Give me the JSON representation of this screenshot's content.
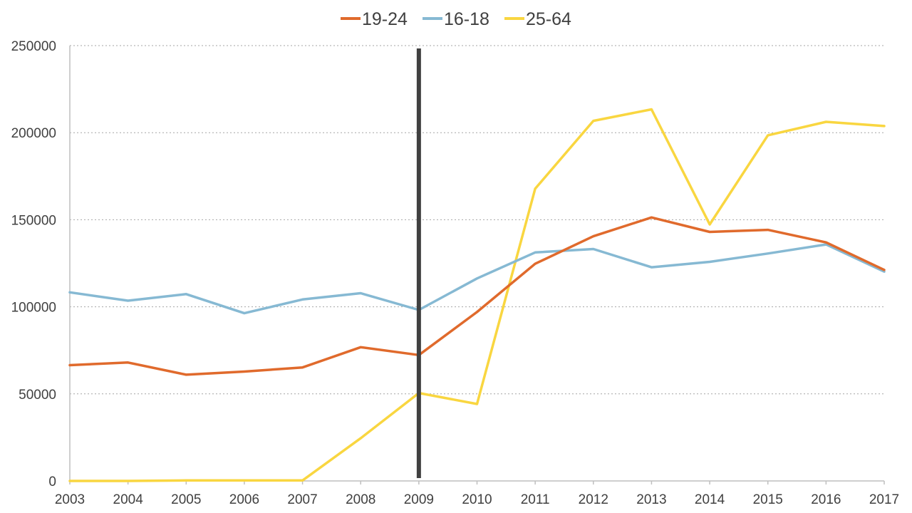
{
  "chart_data": {
    "type": "line",
    "title": "",
    "xlabel": "",
    "ylabel": "",
    "x": [
      2003,
      2004,
      2005,
      2006,
      2007,
      2008,
      2009,
      2010,
      2011,
      2012,
      2013,
      2014,
      2015,
      2016,
      2017
    ],
    "x_tick_labels": [
      "2003",
      "2004",
      "2005",
      "2006",
      "2007",
      "2008",
      "2009",
      "2010",
      "2011",
      "2012",
      "2013",
      "2014",
      "2015",
      "2016",
      "2017"
    ],
    "ylim": [
      0,
      250000
    ],
    "y_ticks": [
      0,
      50000,
      100000,
      150000,
      200000,
      250000
    ],
    "y_tick_labels": [
      "0",
      "50000",
      "100000",
      "150000",
      "200000",
      "250000"
    ],
    "grid": true,
    "legend_position": "top-center",
    "series": [
      {
        "name": "19-24",
        "color": "#E06A2C",
        "values": [
          66500,
          68000,
          61000,
          62800,
          65200,
          76800,
          72300,
          97000,
          124700,
          140500,
          151300,
          143000,
          144200,
          137000,
          121200
        ]
      },
      {
        "name": "16-18",
        "color": "#86B9D3",
        "values": [
          108300,
          103500,
          107300,
          96300,
          104200,
          107800,
          98200,
          116300,
          131200,
          133200,
          122700,
          125800,
          130600,
          135800,
          120200
        ]
      },
      {
        "name": "25-64",
        "color": "#F9D640",
        "values": [
          0,
          0,
          300,
          300,
          300,
          24500,
          50500,
          44200,
          167800,
          206800,
          213400,
          147300,
          198500,
          206200,
          203800
        ]
      }
    ],
    "annotations": [
      {
        "type": "vertical-line",
        "x": 2009,
        "color": "#404040"
      }
    ]
  }
}
